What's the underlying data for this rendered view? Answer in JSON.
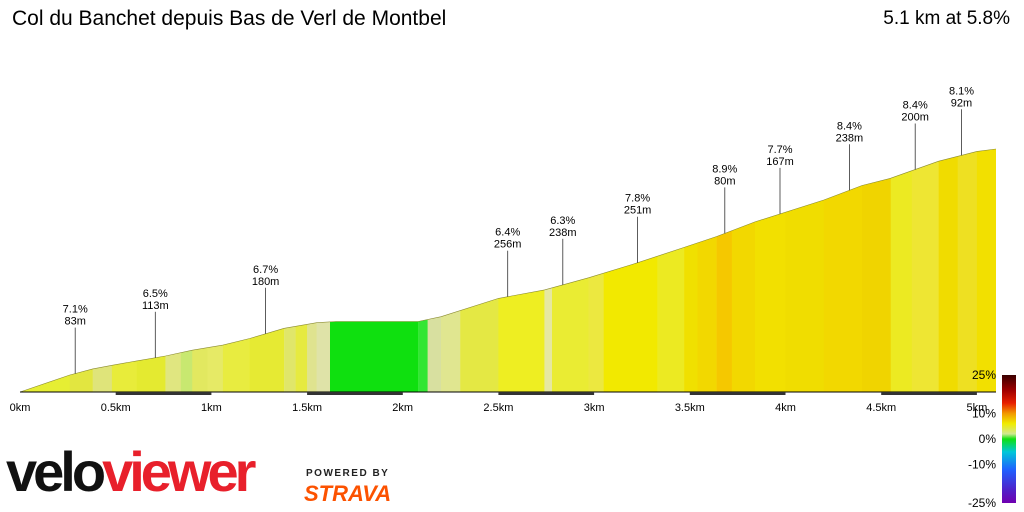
{
  "header": {
    "title": "Col du Banchet depuis Bas de Verl de Montbel",
    "summary": "5.1 km at 5.8%"
  },
  "chart_data": {
    "type": "area",
    "title": "Col du Banchet depuis Bas de Verl de Montbel",
    "xlabel": "",
    "ylabel": "",
    "xlim": [
      0,
      5.1
    ],
    "x_ticks": [
      {
        "value": 0,
        "label": "0km"
      },
      {
        "value": 0.5,
        "label": "0.5km"
      },
      {
        "value": 1,
        "label": "1km"
      },
      {
        "value": 1.5,
        "label": "1.5km"
      },
      {
        "value": 2,
        "label": "2km"
      },
      {
        "value": 2.5,
        "label": "2.5km"
      },
      {
        "value": 3,
        "label": "3km"
      },
      {
        "value": 3.5,
        "label": "3.5km"
      },
      {
        "value": 4,
        "label": "4km"
      },
      {
        "value": 4.5,
        "label": "4.5km"
      },
      {
        "value": 5,
        "label": "5km"
      }
    ],
    "profile": {
      "distance_km": [
        0,
        0.26,
        0.38,
        0.48,
        0.61,
        0.76,
        0.9,
        1.06,
        1.2,
        1.38,
        1.55,
        1.65,
        2.08,
        2.2,
        2.5,
        2.74,
        2.97,
        3.2,
        3.47,
        3.64,
        3.84,
        4.2,
        4.4,
        4.55,
        4.8,
        5.0,
        5.1
      ],
      "relative_height": [
        0,
        0.07,
        0.095,
        0.11,
        0.128,
        0.148,
        0.172,
        0.193,
        0.22,
        0.262,
        0.285,
        0.29,
        0.29,
        0.31,
        0.385,
        0.42,
        0.47,
        0.525,
        0.595,
        0.64,
        0.7,
        0.79,
        0.85,
        0.88,
        0.95,
        0.99,
        1.0
      ]
    },
    "segments": [
      {
        "from": 0,
        "to": 0.26,
        "color": "#e6ee33"
      },
      {
        "from": 0.26,
        "to": 0.38,
        "color": "#e2e640"
      },
      {
        "from": 0.38,
        "to": 0.48,
        "color": "#dfe47a"
      },
      {
        "from": 0.48,
        "to": 0.61,
        "color": "#e8ec3a"
      },
      {
        "from": 0.61,
        "to": 0.76,
        "color": "#e4ea30"
      },
      {
        "from": 0.76,
        "to": 0.84,
        "color": "#e0e680"
      },
      {
        "from": 0.84,
        "to": 0.9,
        "color": "#c8e870"
      },
      {
        "from": 0.9,
        "to": 0.98,
        "color": "#e2e860"
      },
      {
        "from": 0.98,
        "to": 1.06,
        "color": "#e6ea66"
      },
      {
        "from": 1.06,
        "to": 1.2,
        "color": "#e8ec40"
      },
      {
        "from": 1.2,
        "to": 1.38,
        "color": "#e6ea33"
      },
      {
        "from": 1.38,
        "to": 1.44,
        "color": "#e0e66a"
      },
      {
        "from": 1.44,
        "to": 1.5,
        "color": "#e6ea40"
      },
      {
        "from": 1.5,
        "to": 1.55,
        "color": "#dfe38f"
      },
      {
        "from": 1.55,
        "to": 1.62,
        "color": "#dfe3a8"
      },
      {
        "from": 1.62,
        "to": 2.08,
        "color": "#0fe00f"
      },
      {
        "from": 2.08,
        "to": 2.13,
        "color": "#33e633"
      },
      {
        "from": 2.13,
        "to": 2.2,
        "color": "#d8e0a0"
      },
      {
        "from": 2.2,
        "to": 2.3,
        "color": "#e0e690"
      },
      {
        "from": 2.3,
        "to": 2.5,
        "color": "#e4e844"
      },
      {
        "from": 2.5,
        "to": 2.74,
        "color": "#eeee22"
      },
      {
        "from": 2.74,
        "to": 2.78,
        "color": "#e6e8a0"
      },
      {
        "from": 2.78,
        "to": 2.97,
        "color": "#eaec33"
      },
      {
        "from": 2.97,
        "to": 3.05,
        "color": "#ece840"
      },
      {
        "from": 3.05,
        "to": 3.33,
        "color": "#f2e900"
      },
      {
        "from": 3.33,
        "to": 3.47,
        "color": "#ecea22"
      },
      {
        "from": 3.47,
        "to": 3.54,
        "color": "#f0e000"
      },
      {
        "from": 3.54,
        "to": 3.64,
        "color": "#f2d800"
      },
      {
        "from": 3.64,
        "to": 3.72,
        "color": "#f5c800"
      },
      {
        "from": 3.72,
        "to": 3.84,
        "color": "#f2d800"
      },
      {
        "from": 3.84,
        "to": 4.0,
        "color": "#f2e000"
      },
      {
        "from": 4.0,
        "to": 4.2,
        "color": "#f0dd00"
      },
      {
        "from": 4.2,
        "to": 4.4,
        "color": "#f2d800"
      },
      {
        "from": 4.4,
        "to": 4.55,
        "color": "#f0d400"
      },
      {
        "from": 4.55,
        "to": 4.66,
        "color": "#ecea22"
      },
      {
        "from": 4.66,
        "to": 4.8,
        "color": "#eee633"
      },
      {
        "from": 4.8,
        "to": 4.9,
        "color": "#f0dc00"
      },
      {
        "from": 4.9,
        "to": 5.0,
        "color": "#eee022"
      },
      {
        "from": 5.0,
        "to": 5.1,
        "color": "#f2e000"
      }
    ],
    "annotations": [
      {
        "distance_km": 0.31,
        "grade": "7.1%",
        "length": "83m"
      },
      {
        "distance_km": 0.76,
        "grade": "6.5%",
        "length": "113m"
      },
      {
        "distance_km": 1.38,
        "grade": "6.7%",
        "length": "180m"
      },
      {
        "distance_km": 2.74,
        "grade": "6.4%",
        "length": "256m"
      },
      {
        "distance_km": 3.05,
        "grade": "6.3%",
        "length": "238m"
      },
      {
        "distance_km": 3.47,
        "grade": "7.8%",
        "length": "251m"
      },
      {
        "distance_km": 3.96,
        "grade": "8.9%",
        "length": "80m"
      },
      {
        "distance_km": 4.27,
        "grade": "7.7%",
        "length": "167m"
      },
      {
        "distance_km": 4.66,
        "grade": "8.4%",
        "length": "238m"
      },
      {
        "distance_km": 5.03,
        "grade": "8.4%",
        "length": "200m"
      },
      {
        "distance_km": 5.29,
        "grade": "8.1%",
        "length": "92m"
      }
    ],
    "gradient_scale": {
      "labels": [
        {
          "value": 25,
          "label": "25%"
        },
        {
          "value": 10,
          "label": "10%"
        },
        {
          "value": 0,
          "label": "0%"
        },
        {
          "value": -10,
          "label": "-10%"
        },
        {
          "value": -25,
          "label": "-25%"
        }
      ],
      "stops": [
        {
          "value": 25,
          "color": "#3a0000"
        },
        {
          "value": 19,
          "color": "#a00000"
        },
        {
          "value": 14,
          "color": "#e82000"
        },
        {
          "value": 10,
          "color": "#f29800"
        },
        {
          "value": 6,
          "color": "#f0ec00"
        },
        {
          "value": 2,
          "color": "#d0e890"
        },
        {
          "value": 0,
          "color": "#10e010"
        },
        {
          "value": -5,
          "color": "#00c8d8"
        },
        {
          "value": -12,
          "color": "#2060ff"
        },
        {
          "value": -20,
          "color": "#5020c8"
        },
        {
          "value": -25,
          "color": "#7000b0"
        }
      ]
    }
  },
  "branding": {
    "velo": "velo",
    "viewer": "viewer",
    "powered_by": "POWERED BY",
    "strava": "STRAVA"
  },
  "colors": {
    "axis": "#000000",
    "km_bar": "#333333",
    "annotation_line": "#333333"
  }
}
